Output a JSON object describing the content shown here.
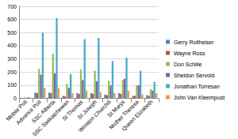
{
  "chart_data": {
    "type": "bar",
    "categories": [
      "Mobile Poll",
      "Advance Poll",
      "SSC Alberta",
      "SSC Saskatchewan",
      "St Thomas",
      "St Joseph",
      "Winston Churchill",
      "St Marys",
      "Mother Theresa",
      "Queen Elizabeth"
    ],
    "series": [
      {
        "name": "Gerry Rollheiser",
        "color": "#4F81BD",
        "values": [
          5,
          45,
          45,
          20,
          40,
          40,
          30,
          40,
          20,
          25
        ]
      },
      {
        "name": "Wayne Ross",
        "color": "#C0504D",
        "values": [
          3,
          40,
          40,
          15,
          35,
          35,
          25,
          35,
          20,
          20
        ]
      },
      {
        "name": "Don Schille",
        "color": "#9BBB59",
        "values": [
          8,
          225,
          340,
          110,
          220,
          210,
          135,
          140,
          100,
          70
        ]
      },
      {
        "name": "Sheldon Servold",
        "color": "#8064A2",
        "values": [
          5,
          180,
          190,
          80,
          140,
          130,
          100,
          150,
          100,
          60
        ]
      },
      {
        "name": "Jonathan Torresan",
        "color": "#4BACC6",
        "values": [
          10,
          500,
          610,
          185,
          450,
          460,
          285,
          310,
          210,
          125
        ]
      },
      {
        "name": "John Van Kleempust",
        "color": "#F79646",
        "values": [
          3,
          80,
          80,
          40,
          60,
          50,
          40,
          60,
          30,
          40
        ]
      }
    ],
    "ylim": [
      0,
      700
    ],
    "yticks": [
      0,
      100,
      200,
      300,
      400,
      500,
      600,
      700
    ],
    "grid": true,
    "legend": "right"
  }
}
